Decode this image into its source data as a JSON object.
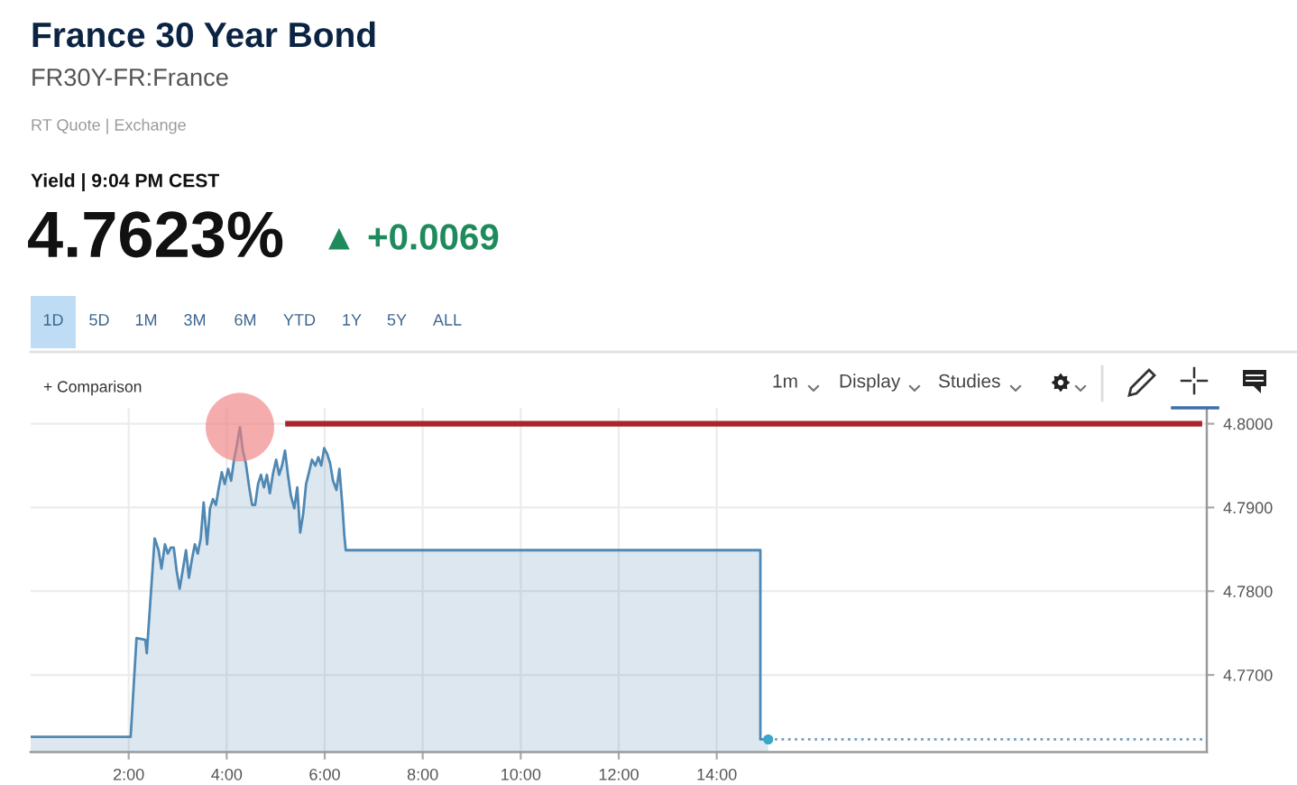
{
  "chart_data": {
    "type": "area",
    "title": "France 30 Year Bond",
    "subtitle": "FR30Y-FR:France",
    "annotations": [
      "RT Quote | Exchange",
      "Yield | 9:04 PM CEST",
      "4.7623%",
      "▲ +0.0069",
      "1D",
      "5D",
      "1M",
      "3M",
      "6M",
      "YTD",
      "1Y",
      "5Y",
      "ALL",
      "+ Comparison",
      "1m",
      "Display",
      "Studies"
    ],
    "series": [
      {
        "type": "area",
        "color": "#4f88b3",
        "x": [
          0,
          2.04,
          2.16,
          2.34,
          2.37,
          2.53,
          2.55,
          2.61,
          2.67,
          2.74,
          2.8,
          2.86,
          2.92,
          2.98,
          3.04,
          3.1,
          3.17,
          3.23,
          3.29,
          3.35,
          3.41,
          3.47,
          3.53,
          3.6,
          3.66,
          3.72,
          3.78,
          3.84,
          3.9,
          3.96,
          4.03,
          4.09,
          4.15,
          4.21,
          4.27,
          4.33,
          4.39,
          4.46,
          4.52,
          4.58,
          4.64,
          4.7,
          4.76,
          4.82,
          4.88,
          4.95,
          5.01,
          5.07,
          5.13,
          5.19,
          5.25,
          5.31,
          5.38,
          5.44,
          5.5,
          5.56,
          5.62,
          5.68,
          5.74,
          5.81,
          5.87,
          5.93,
          5.99,
          6.05,
          6.11,
          6.17,
          6.24,
          6.3,
          6.36,
          6.4,
          6.43,
          14.89,
          14.89,
          15.05
        ],
        "values": [
          4.7626,
          4.7626,
          4.7744,
          4.7742,
          4.7726,
          4.7863,
          4.786,
          4.7849,
          4.7827,
          4.7856,
          4.7845,
          4.7852,
          4.7852,
          4.7824,
          4.7803,
          4.7824,
          4.7849,
          4.7816,
          4.7838,
          4.7856,
          4.7845,
          4.7863,
          4.7906,
          4.7856,
          4.7899,
          4.791,
          4.7903,
          4.7924,
          4.7942,
          4.7928,
          4.7946,
          4.7932,
          4.7957,
          4.7975,
          4.7996,
          4.7968,
          4.7953,
          4.7924,
          4.7903,
          4.7903,
          4.7928,
          4.7939,
          4.7924,
          4.7939,
          4.7917,
          4.7942,
          4.7957,
          4.7939,
          4.795,
          4.7968,
          4.7939,
          4.7914,
          4.7899,
          4.7924,
          4.787,
          4.7892,
          4.7928,
          4.7942,
          4.7957,
          4.795,
          4.796,
          4.795,
          4.7971,
          4.7964,
          4.7953,
          4.7932,
          4.7921,
          4.7946,
          4.7903,
          4.7867,
          4.7849,
          4.7849,
          4.7623,
          4.7623
        ]
      },
      {
        "type": "line",
        "color": "#a8262b",
        "x": [
          5.25,
          23.85
        ],
        "values": [
          4.8,
          4.8
        ]
      },
      {
        "type": "line",
        "line_style": "dotted",
        "color": "#7a9cb8",
        "x": [
          15.05,
          24
        ],
        "values": [
          4.7623,
          4.7623
        ]
      },
      {
        "type": "scatter",
        "marker": "circle",
        "color": "#3aa6c9",
        "x": [
          15.05
        ],
        "values": [
          4.7623
        ]
      }
    ],
    "xlim": [
      0,
      24
    ],
    "xticks": [
      {
        "value": 2,
        "label": "2:00"
      },
      {
        "value": 4,
        "label": "4:00"
      },
      {
        "value": 6,
        "label": "6:00"
      },
      {
        "value": 8,
        "label": "8:00"
      },
      {
        "value": 10,
        "label": "10:00"
      },
      {
        "value": 12,
        "label": "12:00"
      },
      {
        "value": 14,
        "label": "14:00"
      }
    ],
    "ylim": [
      4.7608,
      4.8019
    ],
    "yticks": [
      {
        "value": 4.77,
        "label": "4.7700"
      },
      {
        "value": 4.78,
        "label": "4.7800"
      },
      {
        "value": 4.79,
        "label": "4.7900"
      },
      {
        "value": 4.8,
        "label": "4.8000"
      }
    ],
    "grid": true
  }
}
